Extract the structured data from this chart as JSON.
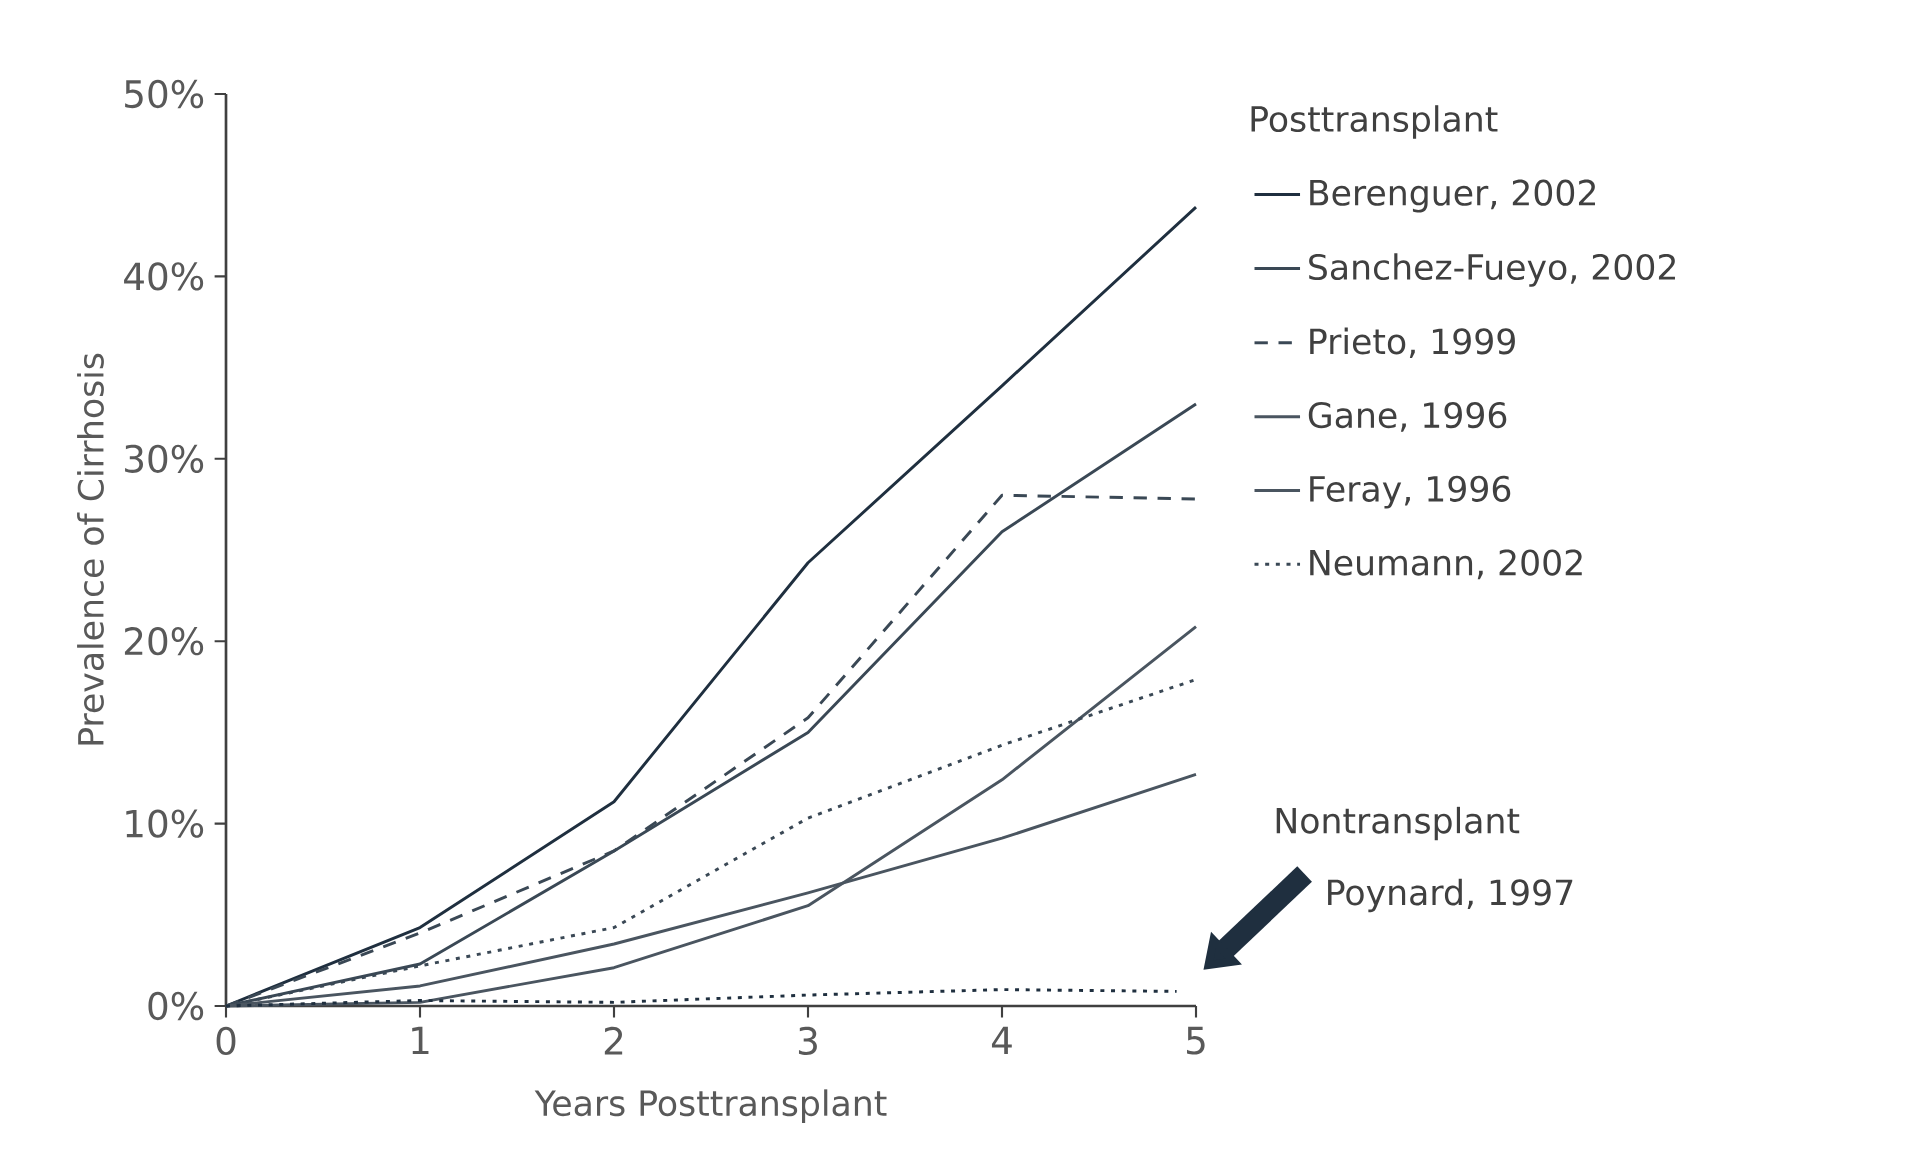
{
  "chart_data": {
    "type": "line",
    "xlabel": "Years Posttransplant",
    "ylabel": "Prevalence of Cirrhosis",
    "x": [
      0,
      1,
      2,
      3,
      4,
      5
    ],
    "xlim": [
      0,
      5
    ],
    "xticks": [
      0,
      1,
      2,
      3,
      4,
      5
    ],
    "ylim": [
      0,
      50
    ],
    "yticks": [
      {
        "value": 0,
        "label": "0%"
      },
      {
        "value": 10,
        "label": "10%"
      },
      {
        "value": 20,
        "label": "20%"
      },
      {
        "value": 30,
        "label": "30%"
      },
      {
        "value": 40,
        "label": "40%"
      },
      {
        "value": 50,
        "label": "50%"
      }
    ],
    "legend_title": "Posttransplant",
    "legend": "right",
    "grid": false,
    "marker": "none",
    "annotations": [
      "Nontransplant",
      "Poynard, 1997"
    ],
    "series": [
      {
        "name": "Berenguer, 2002",
        "color": "#1f2f3f",
        "line_style": "solid",
        "values": [
          0,
          4.3,
          11.2,
          24.3,
          34,
          43.8
        ]
      },
      {
        "name": "Sanchez-Fueyo, 2002",
        "color": "#3a4855",
        "line_style": "solid",
        "values": [
          0,
          2.3,
          8.5,
          15,
          26,
          33
        ]
      },
      {
        "name": "Prieto, 1999",
        "color": "#3a4855",
        "line_style": "dashed",
        "values": [
          0,
          4,
          8.5,
          15.8,
          28,
          27.8
        ]
      },
      {
        "name": "Gane, 1996",
        "color": "#4a5560",
        "line_style": "solid",
        "values": [
          0,
          1.1,
          3.4,
          6.2,
          9.2,
          12.7
        ]
      },
      {
        "name": "Feray, 1996",
        "color": "#4a5560",
        "line_style": "solid",
        "values": [
          0,
          0.2,
          2.1,
          5.5,
          12.4,
          20.8
        ]
      },
      {
        "name": "Neumann, 2002",
        "color": "#3a4855",
        "line_style": "dotted",
        "values": [
          0,
          2.2,
          4.3,
          10.3,
          14.3,
          17.9
        ]
      },
      {
        "color": "#1f2f3f",
        "line_style": "dotted",
        "x": [
          0,
          1,
          2,
          3,
          4,
          4.9
        ],
        "values": [
          0,
          0.3,
          0.2,
          0.6,
          0.9,
          0.8
        ]
      }
    ]
  }
}
